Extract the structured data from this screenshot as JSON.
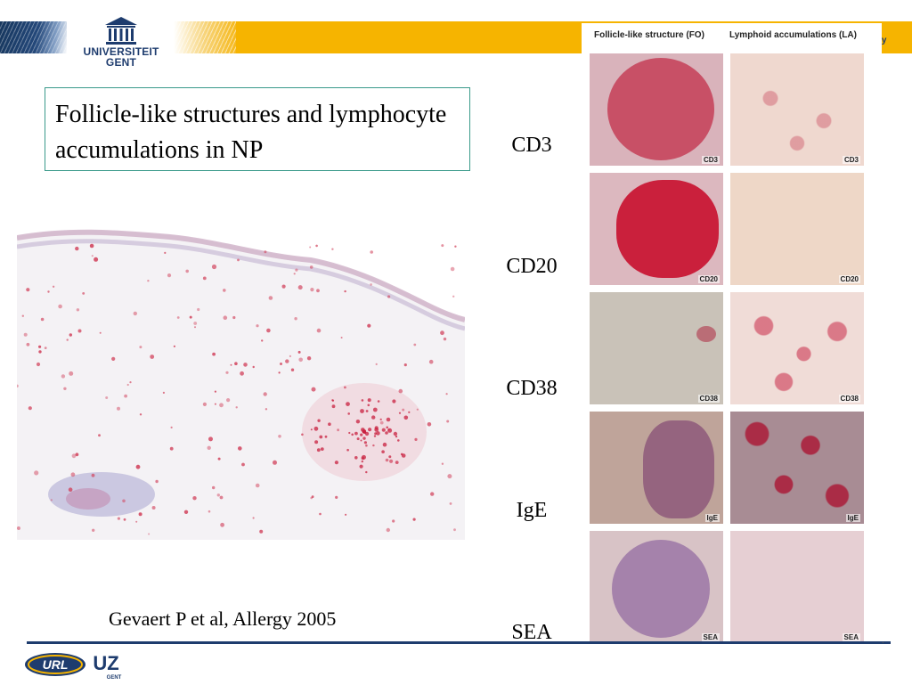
{
  "header": {
    "university_line1": "UNIVERSITEIT",
    "university_line2": "GENT",
    "tail_text": "ry",
    "colors": {
      "navy": "#1e3c6e",
      "gold": "#f6b400"
    }
  },
  "title": "Follicle-like structures and lymphocyte accumulations in NP",
  "markers": [
    "CD3",
    "CD20",
    "CD38",
    "IgE",
    "SEA"
  ],
  "citation": "Gevaert P et al, Allergy 2005",
  "panel": {
    "col_headers": [
      "Follicle-like structure (FO)",
      "Lymphoid accumulations (LA)"
    ],
    "tile_labels": [
      "CD3",
      "CD20",
      "CD38",
      "IgE",
      "SEA"
    ]
  },
  "footer": {
    "logo_left": "URL",
    "logo_right": "UZ",
    "logo_right_sub": "GENT",
    "tail_text": "."
  }
}
